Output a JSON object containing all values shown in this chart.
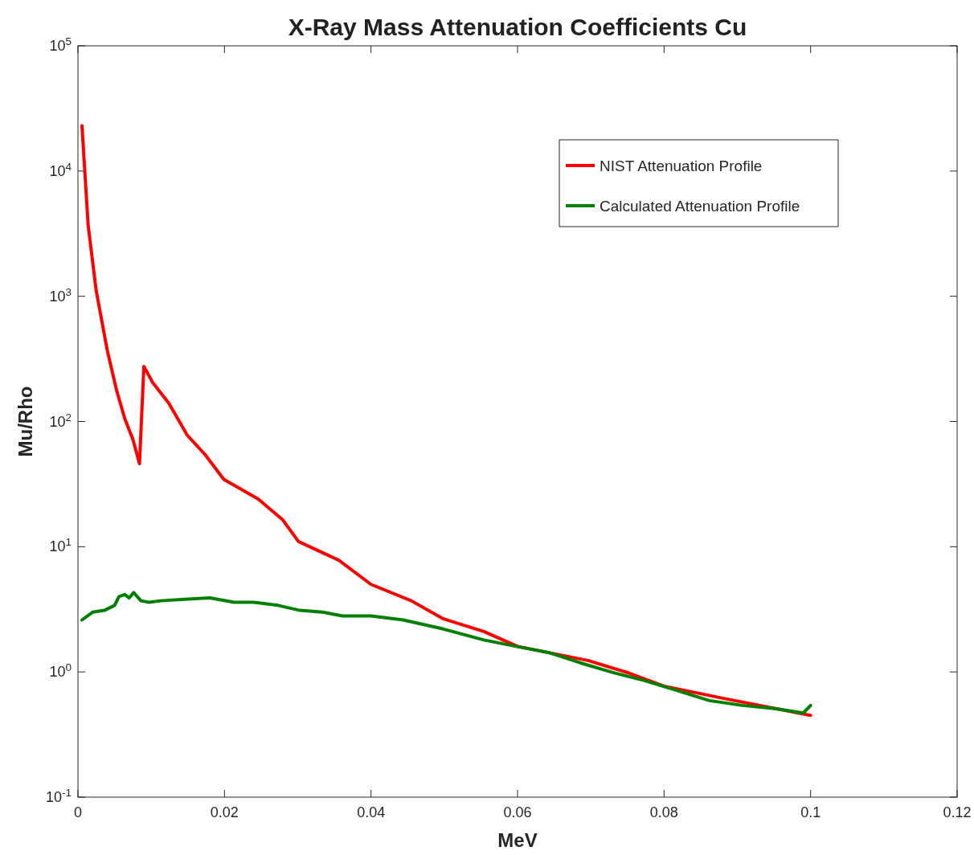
{
  "chart_data": {
    "type": "line",
    "title": "X-Ray Mass Attenuation Coefficients Cu",
    "xlabel": "MeV",
    "ylabel": "Mu/Rho",
    "log": "y",
    "grid": false,
    "legend": "top right",
    "marker": "none",
    "line_style": "solid",
    "xlim": [
      0,
      0.12
    ],
    "xticks": [
      0,
      0.02,
      0.04,
      0.06,
      0.08,
      0.1,
      0.12
    ],
    "ylim": [
      0.1,
      100000
    ],
    "yticks": [
      {
        "value": 0.1,
        "label": "10$^{-1}$"
      },
      {
        "value": 1,
        "label": "10$^{0}$"
      },
      {
        "value": 10,
        "label": "10$^{1}$"
      },
      {
        "value": 100,
        "label": "10$^{2}$"
      },
      {
        "value": 1000,
        "label": "10$^{3}$"
      },
      {
        "value": 10000,
        "label": "10$^{4}$"
      },
      {
        "value": 100000,
        "label": "10$^{5}$"
      }
    ],
    "series": [
      {
        "name": "NIST Attenuation Profile",
        "color": "#ff0000",
        "x": [
          0.00055,
          0.0014,
          0.0025,
          0.004,
          0.0053,
          0.0064,
          0.0075,
          0.0084,
          0.009,
          0.0102,
          0.0124,
          0.0149,
          0.0174,
          0.0199,
          0.0246,
          0.0279,
          0.0301,
          0.0356,
          0.04,
          0.0455,
          0.0499,
          0.0554,
          0.06,
          0.0697,
          0.0752,
          0.08,
          0.0884,
          0.1
        ],
        "values": [
          23000,
          3650,
          1100,
          370,
          175,
          105,
          72,
          46,
          275,
          205,
          140,
          78,
          54,
          34.5,
          24,
          16.5,
          11,
          7.8,
          5,
          3.7,
          2.65,
          2.1,
          1.6,
          1.23,
          0.98,
          0.77,
          0.61,
          0.45
        ]
      },
      {
        "name": "Calculated Attenuation Profile",
        "color": "#008000",
        "x": [
          0.00055,
          0.002,
          0.0036,
          0.005,
          0.0056,
          0.0064,
          0.007,
          0.0076,
          0.0086,
          0.0097,
          0.0113,
          0.0146,
          0.018,
          0.0213,
          0.024,
          0.0273,
          0.0303,
          0.0334,
          0.0361,
          0.04,
          0.0444,
          0.0499,
          0.0554,
          0.0598,
          0.0642,
          0.0686,
          0.073,
          0.0774,
          0.0818,
          0.0862,
          0.0907,
          0.0951,
          0.099,
          0.1
        ],
        "values": [
          2.6,
          3,
          3.1,
          3.4,
          4,
          4.15,
          3.9,
          4.3,
          3.7,
          3.6,
          3.7,
          3.8,
          3.9,
          3.6,
          3.6,
          3.4,
          3.1,
          3,
          2.8,
          2.8,
          2.6,
          2.2,
          1.8,
          1.6,
          1.43,
          1.18,
          0.99,
          0.85,
          0.71,
          0.59,
          0.54,
          0.51,
          0.47,
          0.54
        ]
      }
    ]
  }
}
